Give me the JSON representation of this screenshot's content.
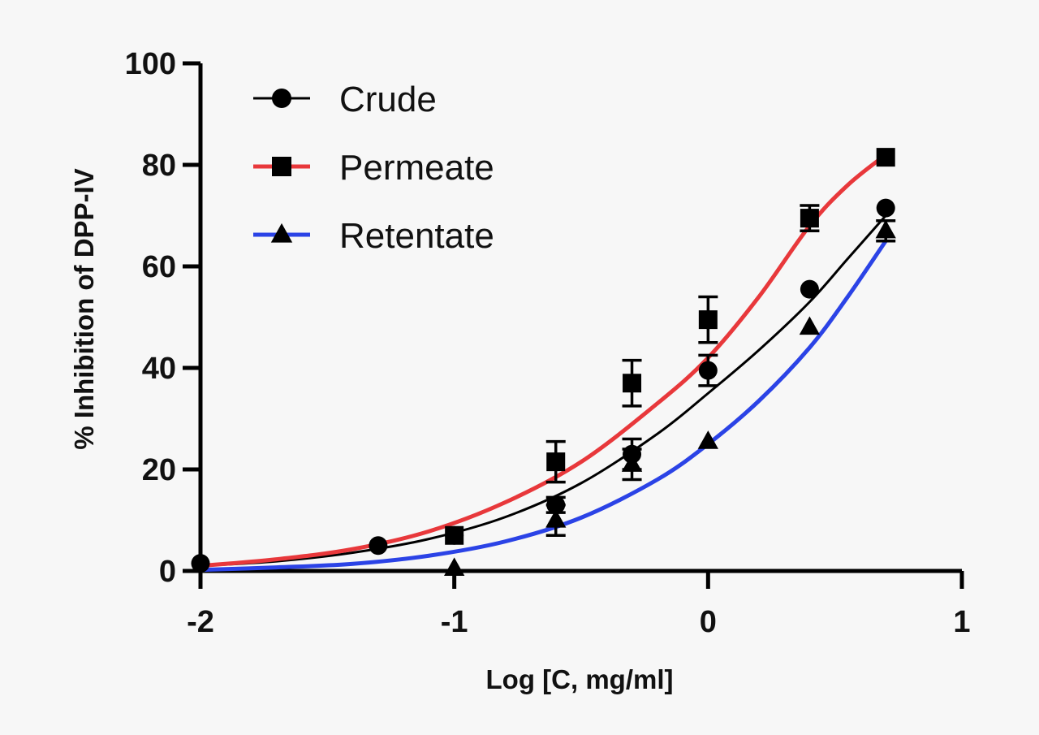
{
  "chart_data": {
    "type": "line",
    "title": "",
    "xlabel": "Log [C, mg/ml]",
    "ylabel": "% Inhibition of DPP-IV",
    "xlim": [
      -2,
      1
    ],
    "ylim": [
      0,
      100
    ],
    "x_ticks": [
      -2,
      -1,
      0,
      1
    ],
    "x_tick_labels": [
      "-2",
      "-1",
      "0",
      "1"
    ],
    "y_ticks": [
      0,
      20,
      40,
      60,
      80,
      100
    ],
    "y_tick_labels": [
      "0",
      "20",
      "40",
      "60",
      "80",
      "100"
    ],
    "grid": false,
    "legend_position": "top-left",
    "series": [
      {
        "name": "Crude",
        "marker": "circle",
        "color": "#000000",
        "x": [
          -2,
          -1.3,
          -1,
          -0.6,
          -0.3,
          0,
          0.4,
          0.7
        ],
        "y": [
          1.5,
          5,
          7,
          13,
          23,
          39.5,
          55.5,
          71.5
        ],
        "error": [
          0,
          0,
          0,
          1.5,
          3,
          3,
          0,
          0
        ],
        "fit_x": [
          -2,
          -1.7,
          -1.4,
          -1.1,
          -0.8,
          -0.5,
          -0.2,
          0,
          0.2,
          0.4,
          0.55,
          0.7
        ],
        "fit_y": [
          1.0,
          1.9,
          3.6,
          6.3,
          10.6,
          17.3,
          27.0,
          35.0,
          43.5,
          53.0,
          61.5,
          70.0
        ]
      },
      {
        "name": "Permeate",
        "marker": "square",
        "color": "#e8383b",
        "x": [
          -1,
          -0.6,
          -0.3,
          0,
          0.4,
          0.7
        ],
        "y": [
          7,
          21.5,
          37,
          49.5,
          69.5,
          81.5
        ],
        "error": [
          0,
          4,
          4.5,
          4.5,
          2.5,
          0
        ],
        "fit_x": [
          -2,
          -1.7,
          -1.4,
          -1.1,
          -0.8,
          -0.5,
          -0.2,
          0,
          0.2,
          0.4,
          0.55,
          0.7
        ],
        "fit_y": [
          1.0,
          2.3,
          4.3,
          7.8,
          13.5,
          21.5,
          33.0,
          42.0,
          54.0,
          68.0,
          76.0,
          82.0
        ]
      },
      {
        "name": "Retentate",
        "marker": "triangle",
        "color": "#2b43e6",
        "x": [
          -1,
          -0.6,
          -0.3,
          0,
          0.4,
          0.7
        ],
        "y": [
          0.5,
          10,
          21,
          25.5,
          48,
          67
        ],
        "error": [
          0,
          3,
          3,
          0,
          0,
          2
        ],
        "fit_x": [
          -2,
          -1.7,
          -1.4,
          -1.1,
          -0.8,
          -0.5,
          -0.2,
          0,
          0.2,
          0.4,
          0.55,
          0.7
        ],
        "fit_y": [
          0.2,
          0.7,
          1.4,
          3.0,
          5.8,
          10.5,
          18.0,
          25.0,
          33.5,
          44.0,
          54.0,
          65.0
        ]
      }
    ]
  }
}
